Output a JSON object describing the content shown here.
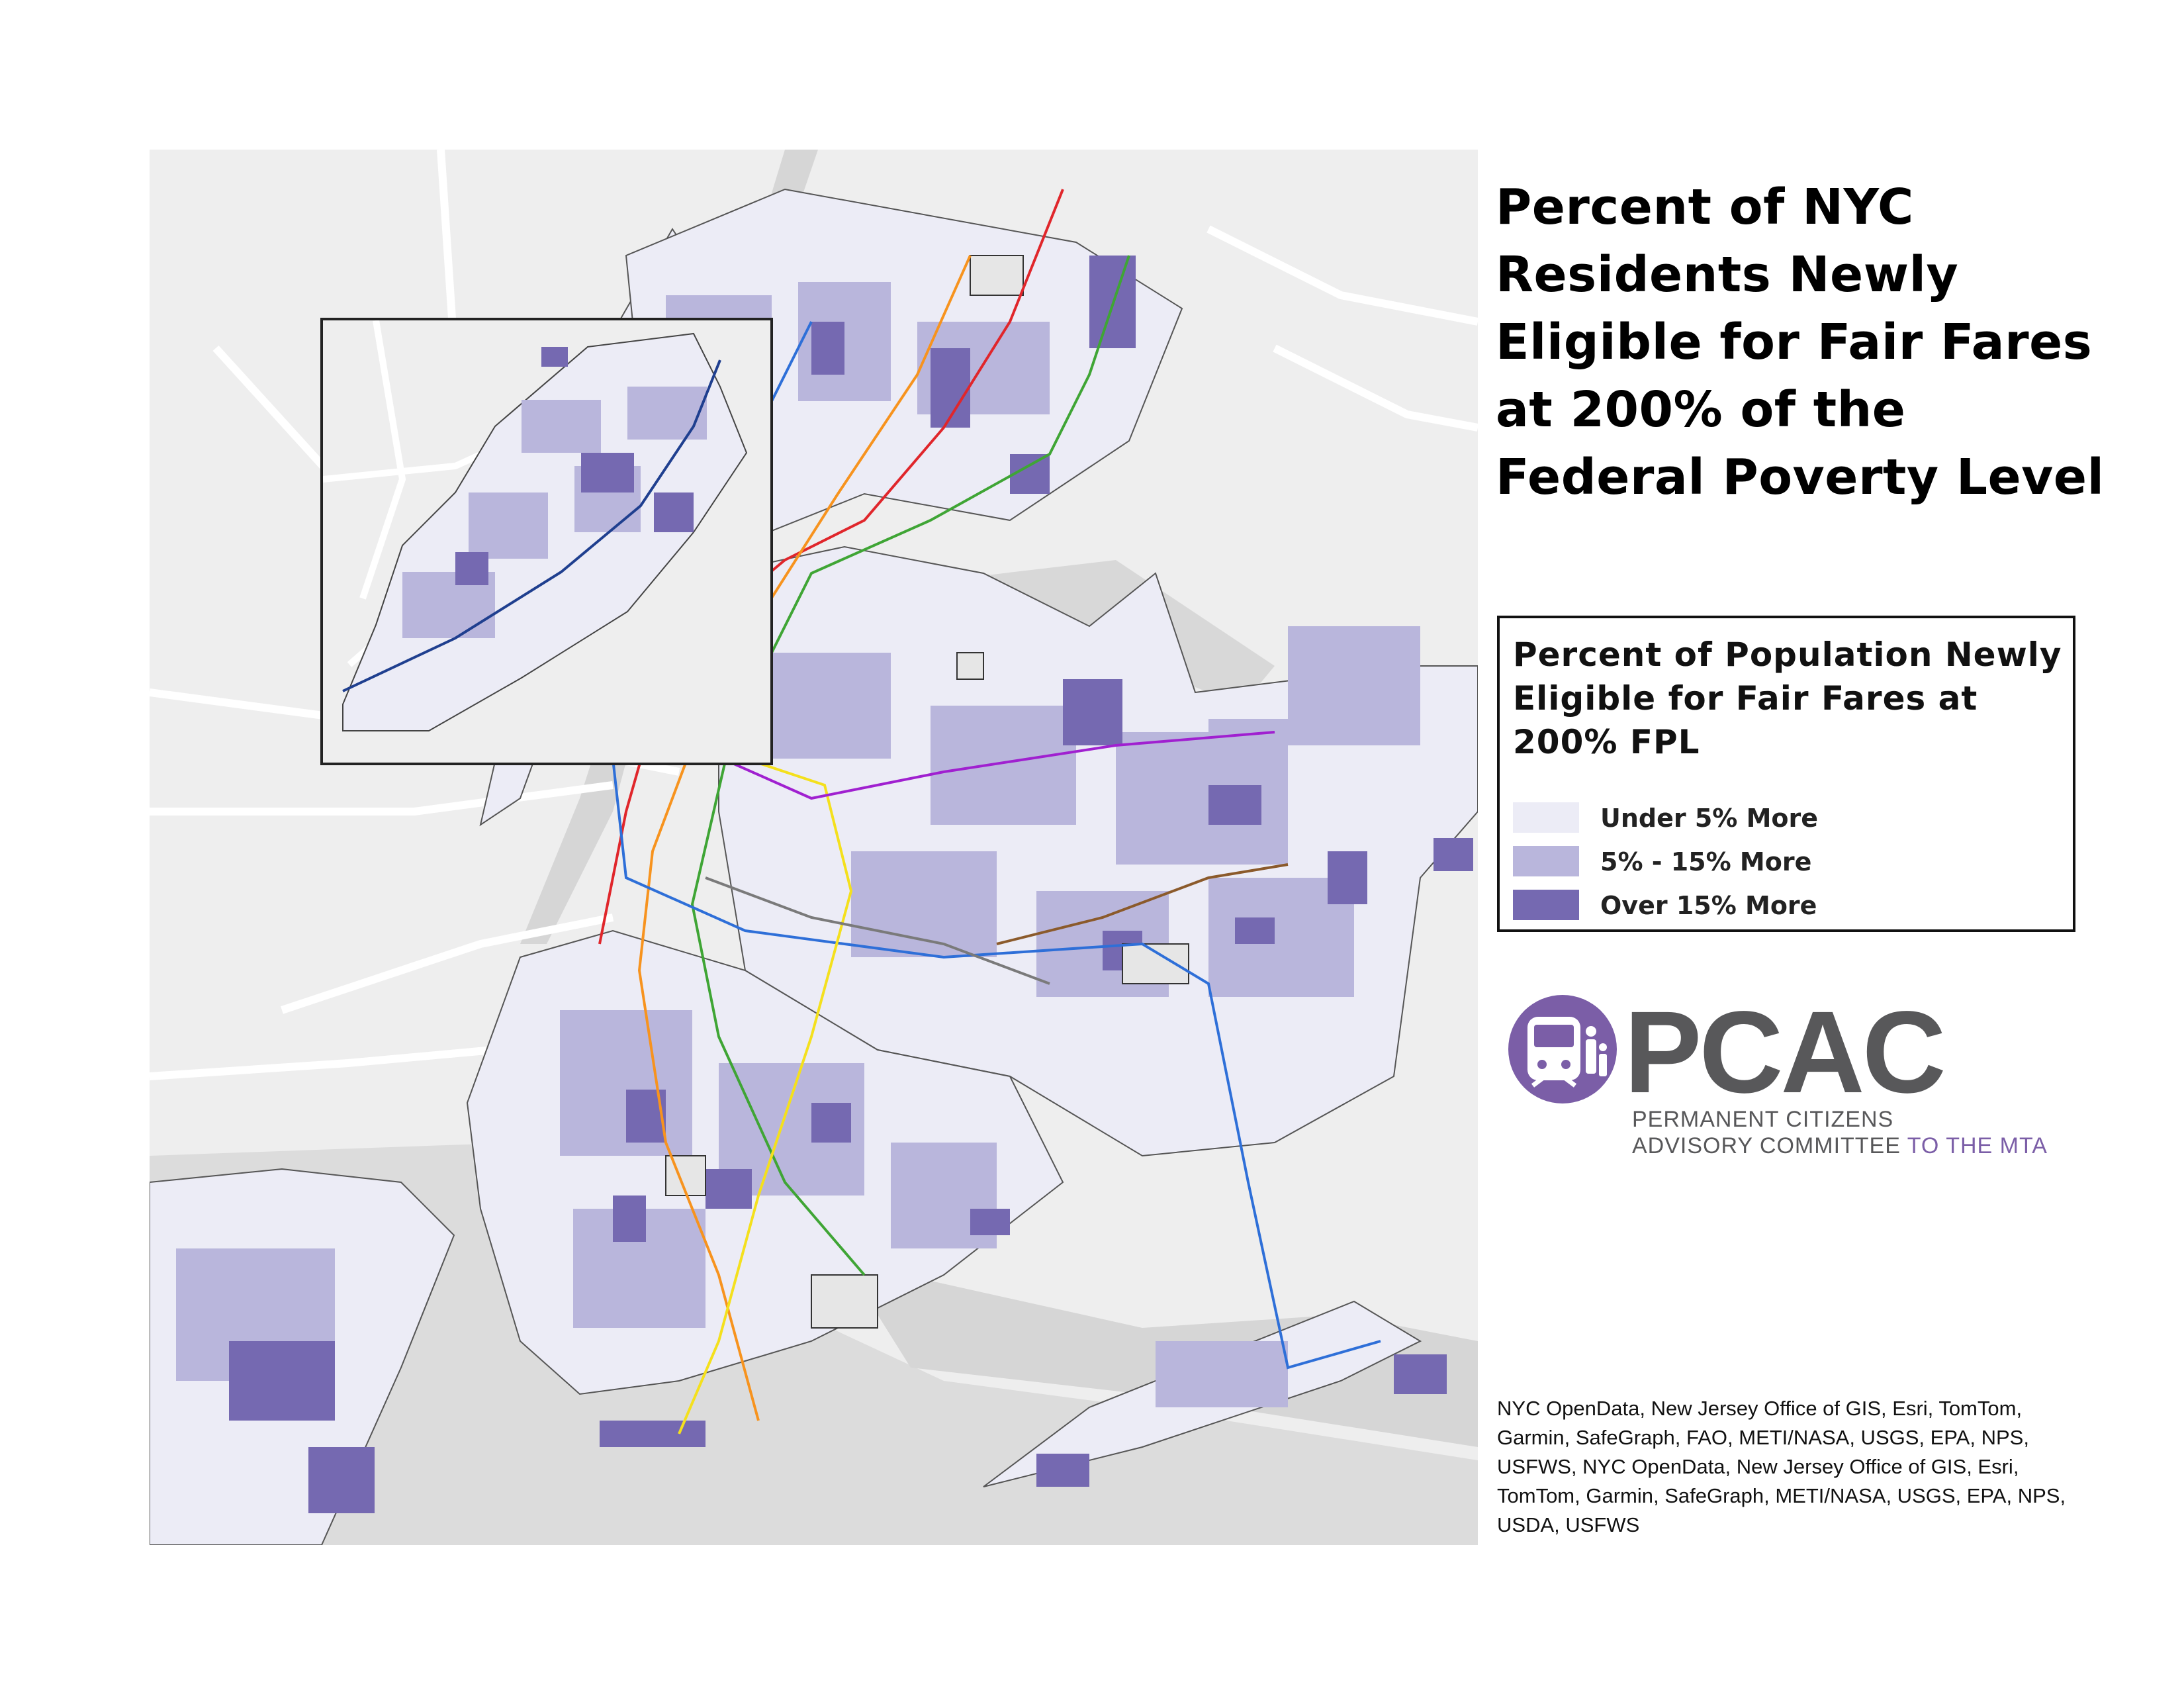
{
  "title": "Percent of NYC Residents Newly Eligible for Fair Fares at 200% of the Federal Poverty Level",
  "legend": {
    "title": "Percent of Population Newly Eligible for Fair Fares at 200% FPL",
    "items": [
      {
        "label": "Under 5% More",
        "color": "#ececf6"
      },
      {
        "label": "5% - 15% More",
        "color": "#b9b6dc"
      },
      {
        "label": "Over 15% More",
        "color": "#7569b1"
      }
    ]
  },
  "logo": {
    "wordmark": "PCAC",
    "line1": "PERMANENT CITIZENS",
    "line2_main": "ADVISORY COMMITTEE",
    "line2_accent": "TO THE MTA",
    "color": "#7b5ea7"
  },
  "credits": "NYC OpenData, New Jersey Office of GIS, Esri, TomTom, Garmin, SafeGraph, FAO, METI/NASA, USGS, EPA, NPS, USFWS, NYC OpenData, New Jersey Office of GIS, Esri, TomTom, Garmin, SafeGraph, METI/NASA, USGS, EPA, NPS, USDA, USFWS",
  "map": {
    "background": "#eeeeee",
    "water_color": "#d8d8d8",
    "road_color": "#ffffff",
    "subway_line_colors": [
      "#e0262b",
      "#f7931e",
      "#3fa535",
      "#2e6fd8",
      "#f4e01d",
      "#a020d0",
      "#7a7a7a",
      "#8b5a2b"
    ]
  }
}
